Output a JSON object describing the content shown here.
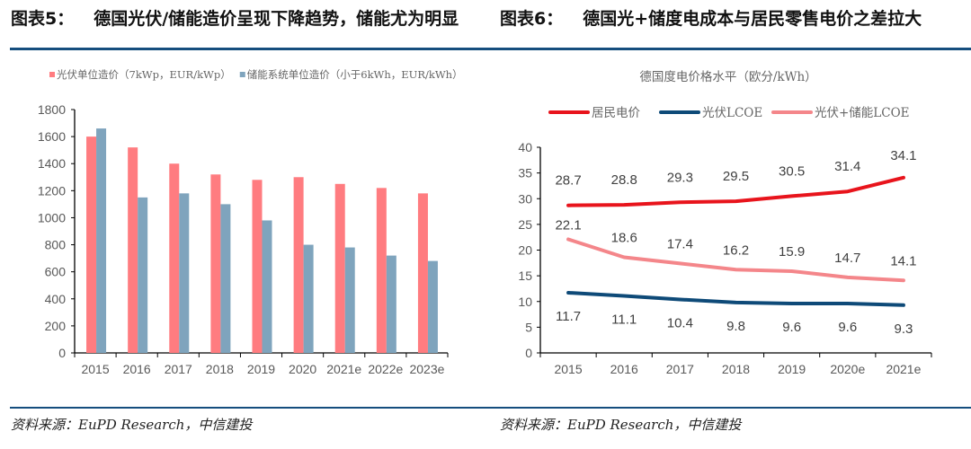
{
  "left_panel": {
    "figure_number": "图表5：",
    "title": "德国光伏/储能造价呈现下降趋势，储能尤为明显",
    "source": "资料来源：EuPD Research，中信建投"
  },
  "right_panel": {
    "figure_number": "图表6：",
    "title": "德国光+储度电成本与居民零售电价之差拉大",
    "source": "资料来源：EuPD Research，中信建投"
  },
  "colors": {
    "rule": "#154e7e",
    "pv_bar": "#ff7c80",
    "storage_bar": "#7fa4bd",
    "residential_line": "#e8141c",
    "pv_lcoe_line": "#0e4a78",
    "pv_storage_lcoe_line": "#f4868a",
    "axis_text": "#595959"
  },
  "chart_data": [
    {
      "type": "bar",
      "title": "",
      "categories": [
        "2015",
        "2016",
        "2017",
        "2018",
        "2019",
        "2020",
        "2021e",
        "2022e",
        "2023e"
      ],
      "series": [
        {
          "name": "光伏单位造价（7kWp，EUR/kWp）",
          "values": [
            1600,
            1520,
            1400,
            1320,
            1280,
            1300,
            1250,
            1220,
            1180
          ]
        },
        {
          "name": "储能系统单位造价（小于6kWh，EUR/kWh）",
          "values": [
            1660,
            1150,
            1180,
            1100,
            980,
            800,
            780,
            720,
            680
          ]
        }
      ],
      "yticks": [
        "0",
        "200",
        "400",
        "600",
        "800",
        "1000",
        "1200",
        "1400",
        "1600",
        "1800"
      ],
      "ylim": [
        0,
        1800
      ],
      "xlabel": "",
      "ylabel": "",
      "grid": false,
      "legend": "top-center"
    },
    {
      "type": "line",
      "title": "德国度电价格水平（欧分/kWh）",
      "categories": [
        "2015",
        "2016",
        "2017",
        "2018",
        "2019",
        "2020e",
        "2021e"
      ],
      "series": [
        {
          "name": "居民电价",
          "values": [
            28.7,
            28.8,
            29.3,
            29.5,
            30.5,
            31.4,
            34.1
          ],
          "labels": [
            "28.7",
            "28.8",
            "29.3",
            "29.5",
            "30.5",
            "31.4",
            "34.1"
          ]
        },
        {
          "name": "光伏LCOE",
          "values": [
            11.7,
            11.1,
            10.4,
            9.8,
            9.6,
            9.6,
            9.3
          ],
          "labels": [
            "11.7",
            "11.1",
            "10.4",
            "9.8",
            "9.6",
            "9.6",
            "9.3"
          ]
        },
        {
          "name": "光伏+储能LCOE",
          "values": [
            22.1,
            18.6,
            17.4,
            16.2,
            15.9,
            14.7,
            14.1
          ],
          "labels": [
            "22.1",
            "18.6",
            "17.4",
            "16.2",
            "15.9",
            "14.7",
            "14.1"
          ]
        }
      ],
      "yticks": [
        "0",
        "5",
        "10",
        "15",
        "20",
        "25",
        "30",
        "35",
        "40"
      ],
      "ylim": [
        0,
        40
      ],
      "xlabel": "",
      "ylabel": "",
      "grid": false,
      "legend": "top-center"
    }
  ]
}
